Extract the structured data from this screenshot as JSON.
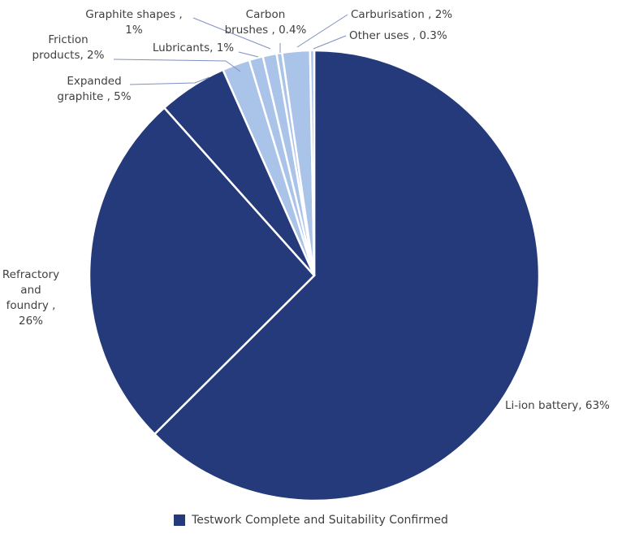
{
  "chart_data": {
    "type": "pie",
    "title": "",
    "slices": [
      {
        "key": "li-ion-battery",
        "label": "Li-ion battery, 63%",
        "value": 63,
        "color": "#243a7a"
      },
      {
        "key": "refractory-foundry",
        "label": "Refractory and foundry , 26%",
        "value": 26,
        "color": "#243a7a"
      },
      {
        "key": "expanded-graphite",
        "label": "Expanded graphite , 5%",
        "value": 5,
        "color": "#243a7a"
      },
      {
        "key": "friction-products",
        "label": "Friction products, 2%",
        "value": 2,
        "color": "#a9c4e8"
      },
      {
        "key": "lubricants",
        "label": "Lubricants, 1%",
        "value": 1,
        "color": "#a9c4e8"
      },
      {
        "key": "graphite-shapes",
        "label": "Graphite shapes , 1%",
        "value": 1,
        "color": "#a9c4e8"
      },
      {
        "key": "carbon-brushes",
        "label": "Carbon brushes , 0.4%",
        "value": 0.4,
        "color": "#a9c4e8"
      },
      {
        "key": "carburisation",
        "label": "Carburisation , 2%",
        "value": 2,
        "color": "#a9c4e8"
      },
      {
        "key": "other-uses",
        "label": "Other uses , 0.3%",
        "value": 0.3,
        "color": "#a9c4e8"
      }
    ],
    "labels": {
      "li_ion_battery": "Li-ion battery, 63%",
      "refractory_l1": "Refractory",
      "refractory_l2": "and",
      "refractory_l3": "foundry ,",
      "refractory_l4": "26%",
      "expanded_l1": "Expanded",
      "expanded_l2": "graphite , 5%",
      "friction_l1": "Friction",
      "friction_l2": "products, 2%",
      "lubricants": "Lubricants, 1%",
      "graphite_shapes_l1": "Graphite shapes ,",
      "graphite_shapes_l2": "1%",
      "carbon_brushes_l1": "Carbon",
      "carbon_brushes_l2": "brushes , 0.4%",
      "carburisation": "Carburisation , 2%",
      "other_uses": "Other uses , 0.3%"
    },
    "legend": {
      "label": "Testwork Complete and Suitability Confirmed",
      "color": "#243a7a",
      "position": "bottom"
    }
  }
}
